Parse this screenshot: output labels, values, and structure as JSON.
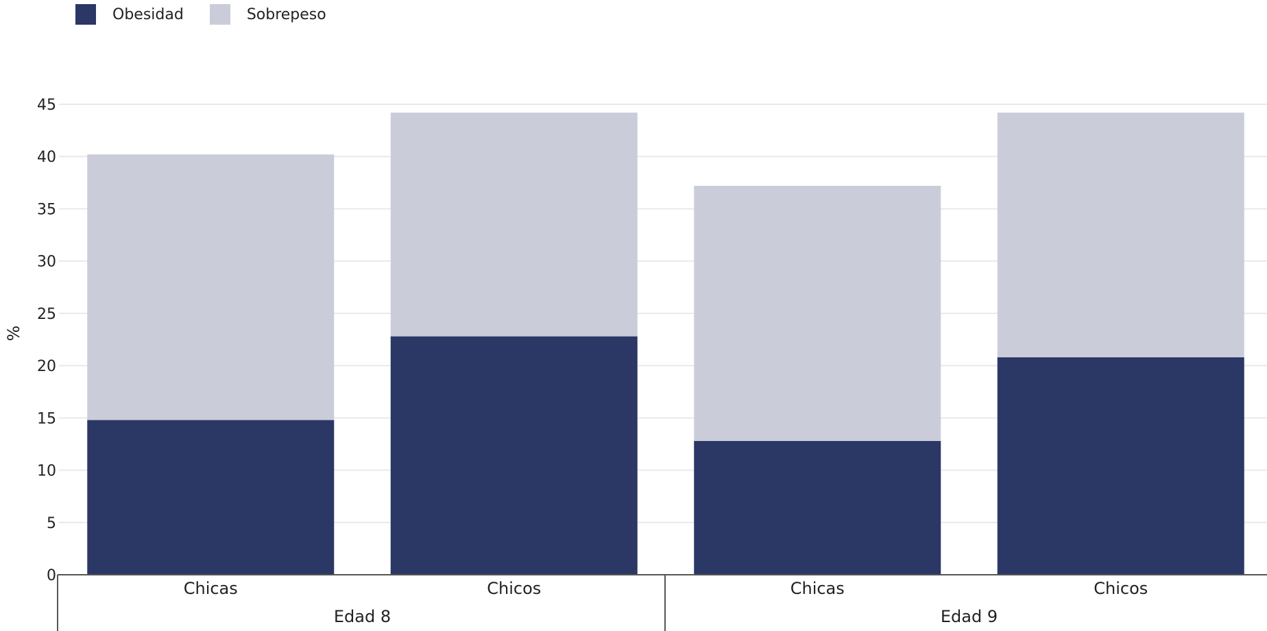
{
  "colors": {
    "obesidad": "#2b3765",
    "sobrepeso": "#cacdd9",
    "grid": "#e9e9e9",
    "axis": "#555555"
  },
  "legend": [
    {
      "label": "Obesidad",
      "color": "#2b3765"
    },
    {
      "label": "Sobrepeso",
      "color": "#cacdd9"
    }
  ],
  "chart_data": {
    "type": "bar",
    "stacked": true,
    "ylabel": "%",
    "ylim": [
      0,
      45
    ],
    "yticks": [
      0,
      5,
      10,
      15,
      20,
      25,
      30,
      35,
      40,
      45
    ],
    "groups": [
      {
        "label": "Edad 8",
        "categories": [
          "Chicas",
          "Chicos"
        ]
      },
      {
        "label": "Edad 9",
        "categories": [
          "Chicas",
          "Chicos"
        ]
      }
    ],
    "categories": [
      "Chicas",
      "Chicos",
      "Chicas",
      "Chicos"
    ],
    "series": [
      {
        "name": "Obesidad",
        "values": [
          14.8,
          22.8,
          12.8,
          20.8
        ]
      },
      {
        "name": "Sobrepeso",
        "values": [
          25.4,
          21.4,
          24.4,
          23.4
        ]
      }
    ],
    "grid": true,
    "legend_position": "top-left"
  }
}
